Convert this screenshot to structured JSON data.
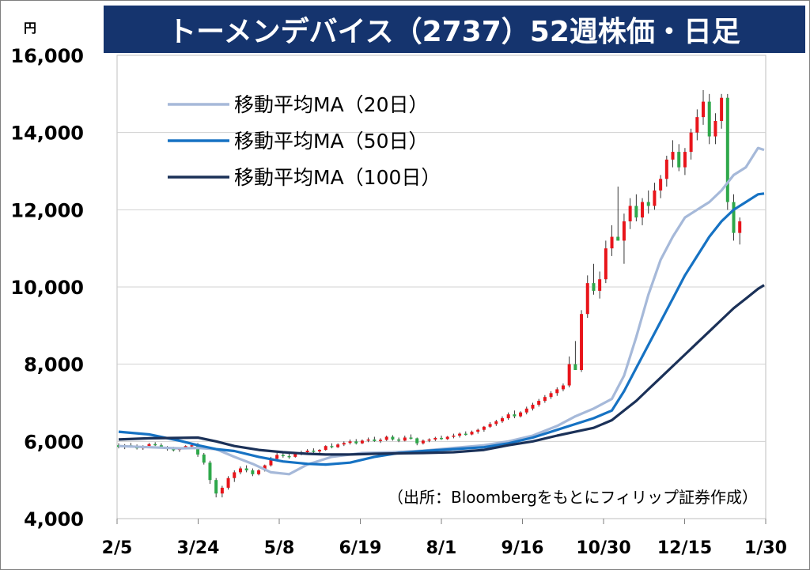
{
  "chart_data": {
    "type": "candlestick",
    "title": "トーメンデバイス（2737）52週株価・日足",
    "ylabel": "円",
    "ylim": [
      4000,
      16000
    ],
    "yticks": [
      "16,000",
      "14,000",
      "12,000",
      "10,000",
      "8,000",
      "6,000",
      "4,000"
    ],
    "ytick_values": [
      16000,
      14000,
      12000,
      10000,
      8000,
      6000,
      4000
    ],
    "xticks": [
      "2/5",
      "3/24",
      "5/8",
      "6/19",
      "8/1",
      "9/16",
      "10/30",
      "12/15",
      "1/30"
    ],
    "grid": true,
    "legend_position": "top-left",
    "source_note": "（出所：Bloombergをもとにフィリップ証券作成）",
    "colors": {
      "up": "#e8141a",
      "down": "#2ea84a",
      "ma20": "#a6b9d9",
      "ma50": "#1672c3",
      "ma100": "#1b3158",
      "title_bg": "#15346e"
    },
    "series": [
      {
        "name": "移動平均MA（20日）",
        "key": "ma20",
        "values": [
          [
            0,
            5880
          ],
          [
            5,
            5850
          ],
          [
            10,
            5820
          ],
          [
            13,
            5830
          ],
          [
            16,
            5800
          ],
          [
            19,
            5600
          ],
          [
            22,
            5420
          ],
          [
            25,
            5200
          ],
          [
            28,
            5150
          ],
          [
            31,
            5400
          ],
          [
            35,
            5600
          ],
          [
            40,
            5700
          ],
          [
            45,
            5720
          ],
          [
            50,
            5760
          ],
          [
            55,
            5830
          ],
          [
            60,
            5900
          ],
          [
            64,
            6000
          ],
          [
            68,
            6150
          ],
          [
            72,
            6400
          ],
          [
            75,
            6650
          ],
          [
            78,
            6850
          ],
          [
            81,
            7100
          ],
          [
            83,
            7700
          ],
          [
            85,
            8700
          ],
          [
            87,
            9800
          ],
          [
            89,
            10700
          ],
          [
            91,
            11300
          ],
          [
            93,
            11800
          ],
          [
            95,
            12000
          ],
          [
            97,
            12200
          ],
          [
            99,
            12500
          ],
          [
            101,
            12900
          ],
          [
            103,
            13100
          ],
          [
            105,
            13600
          ],
          [
            106,
            13550
          ]
        ]
      },
      {
        "name": "移動平均MA（50日）",
        "key": "ma50",
        "values": [
          [
            0,
            6250
          ],
          [
            5,
            6180
          ],
          [
            10,
            6020
          ],
          [
            13,
            5900
          ],
          [
            16,
            5800
          ],
          [
            19,
            5750
          ],
          [
            23,
            5600
          ],
          [
            27,
            5480
          ],
          [
            31,
            5420
          ],
          [
            34,
            5400
          ],
          [
            38,
            5450
          ],
          [
            42,
            5600
          ],
          [
            46,
            5700
          ],
          [
            50,
            5750
          ],
          [
            55,
            5800
          ],
          [
            60,
            5850
          ],
          [
            64,
            5950
          ],
          [
            68,
            6100
          ],
          [
            72,
            6300
          ],
          [
            75,
            6450
          ],
          [
            78,
            6600
          ],
          [
            81,
            6800
          ],
          [
            83,
            7300
          ],
          [
            85,
            7900
          ],
          [
            87,
            8500
          ],
          [
            89,
            9100
          ],
          [
            91,
            9700
          ],
          [
            93,
            10300
          ],
          [
            95,
            10800
          ],
          [
            97,
            11300
          ],
          [
            99,
            11700
          ],
          [
            101,
            12000
          ],
          [
            103,
            12200
          ],
          [
            105,
            12400
          ],
          [
            106,
            12420
          ]
        ]
      },
      {
        "name": "移動平均MA（100日）",
        "key": "ma100",
        "values": [
          [
            0,
            6050
          ],
          [
            5,
            6080
          ],
          [
            10,
            6090
          ],
          [
            13,
            6100
          ],
          [
            16,
            6000
          ],
          [
            19,
            5880
          ],
          [
            23,
            5780
          ],
          [
            27,
            5720
          ],
          [
            31,
            5680
          ],
          [
            34,
            5660
          ],
          [
            38,
            5660
          ],
          [
            42,
            5680
          ],
          [
            46,
            5690
          ],
          [
            50,
            5700
          ],
          [
            55,
            5720
          ],
          [
            60,
            5780
          ],
          [
            64,
            5900
          ],
          [
            68,
            6000
          ],
          [
            72,
            6150
          ],
          [
            75,
            6250
          ],
          [
            78,
            6350
          ],
          [
            81,
            6550
          ],
          [
            83,
            6800
          ],
          [
            85,
            7050
          ],
          [
            87,
            7350
          ],
          [
            89,
            7650
          ],
          [
            91,
            7950
          ],
          [
            93,
            8250
          ],
          [
            95,
            8550
          ],
          [
            97,
            8850
          ],
          [
            99,
            9150
          ],
          [
            101,
            9450
          ],
          [
            103,
            9700
          ],
          [
            105,
            9950
          ],
          [
            106,
            10050
          ]
        ]
      }
    ],
    "candles": [
      [
        0,
        5900,
        5950,
        5820,
        5860
      ],
      [
        1,
        5860,
        5930,
        5800,
        5900
      ],
      [
        2,
        5900,
        5960,
        5840,
        5870
      ],
      [
        3,
        5870,
        5920,
        5790,
        5820
      ],
      [
        4,
        5820,
        5900,
        5780,
        5880
      ],
      [
        5,
        5880,
        5960,
        5850,
        5930
      ],
      [
        6,
        5930,
        5980,
        5880,
        5900
      ],
      [
        7,
        5900,
        5950,
        5820,
        5840
      ],
      [
        8,
        5840,
        5880,
        5760,
        5800
      ],
      [
        9,
        5800,
        5860,
        5740,
        5780
      ],
      [
        10,
        5780,
        5850,
        5730,
        5820
      ],
      [
        11,
        5820,
        5900,
        5800,
        5880
      ],
      [
        12,
        5880,
        5940,
        5840,
        5900
      ],
      [
        13,
        5900,
        5960,
        5600,
        5660
      ],
      [
        14,
        5660,
        5700,
        5400,
        5450
      ],
      [
        15,
        5450,
        5500,
        4900,
        5000
      ],
      [
        16,
        5000,
        5050,
        4550,
        4650
      ],
      [
        17,
        4650,
        4850,
        4550,
        4800
      ],
      [
        18,
        4800,
        5100,
        4750,
        5050
      ],
      [
        19,
        5050,
        5250,
        4950,
        5200
      ],
      [
        20,
        5200,
        5350,
        5150,
        5300
      ],
      [
        21,
        5300,
        5380,
        5200,
        5250
      ],
      [
        22,
        5250,
        5300,
        5100,
        5150
      ],
      [
        23,
        5150,
        5280,
        5120,
        5250
      ],
      [
        24,
        5250,
        5400,
        5220,
        5380
      ],
      [
        25,
        5380,
        5600,
        5350,
        5550
      ],
      [
        26,
        5550,
        5700,
        5500,
        5650
      ],
      [
        27,
        5650,
        5720,
        5580,
        5620
      ],
      [
        28,
        5620,
        5680,
        5550,
        5600
      ],
      [
        29,
        5600,
        5700,
        5580,
        5680
      ],
      [
        30,
        5680,
        5760,
        5640,
        5720
      ],
      [
        31,
        5720,
        5800,
        5680,
        5760
      ],
      [
        32,
        5760,
        5820,
        5700,
        5740
      ],
      [
        33,
        5740,
        5800,
        5690,
        5780
      ],
      [
        34,
        5780,
        5900,
        5760,
        5880
      ],
      [
        35,
        5880,
        5950,
        5820,
        5850
      ],
      [
        36,
        5850,
        5950,
        5830,
        5920
      ],
      [
        37,
        5920,
        6000,
        5880,
        5960
      ],
      [
        38,
        5960,
        6050,
        5920,
        6000
      ],
      [
        39,
        6000,
        6060,
        5920,
        5950
      ],
      [
        40,
        5950,
        6050,
        5930,
        6020
      ],
      [
        41,
        6020,
        6100,
        5980,
        6050
      ],
      [
        42,
        6050,
        6120,
        5990,
        6010
      ],
      [
        43,
        6010,
        6080,
        5960,
        6040
      ],
      [
        44,
        6040,
        6150,
        6010,
        6120
      ],
      [
        45,
        6120,
        6160,
        6020,
        6050
      ],
      [
        46,
        6050,
        6100,
        5980,
        6020
      ],
      [
        47,
        6020,
        6150,
        6000,
        6100
      ],
      [
        48,
        6100,
        6180,
        6050,
        6080
      ],
      [
        49,
        6080,
        6100,
        5900,
        5950
      ],
      [
        50,
        5950,
        6050,
        5920,
        6020
      ],
      [
        51,
        6020,
        6080,
        5980,
        6050
      ],
      [
        52,
        6050,
        6120,
        6010,
        6090
      ],
      [
        53,
        6090,
        6150,
        6040,
        6060
      ],
      [
        54,
        6060,
        6140,
        6040,
        6120
      ],
      [
        55,
        6120,
        6200,
        6080,
        6150
      ],
      [
        56,
        6150,
        6230,
        6100,
        6200
      ],
      [
        57,
        6200,
        6260,
        6150,
        6180
      ],
      [
        58,
        6180,
        6280,
        6160,
        6250
      ],
      [
        59,
        6250,
        6330,
        6200,
        6300
      ],
      [
        60,
        6300,
        6400,
        6250,
        6380
      ],
      [
        61,
        6380,
        6500,
        6350,
        6450
      ],
      [
        62,
        6450,
        6560,
        6400,
        6520
      ],
      [
        63,
        6520,
        6650,
        6480,
        6600
      ],
      [
        64,
        6600,
        6750,
        6560,
        6700
      ],
      [
        65,
        6700,
        6800,
        6600,
        6650
      ],
      [
        66,
        6650,
        6780,
        6620,
        6750
      ],
      [
        67,
        6750,
        6900,
        6700,
        6850
      ],
      [
        68,
        6850,
        7000,
        6800,
        6950
      ],
      [
        69,
        6950,
        7100,
        6900,
        7050
      ],
      [
        70,
        7050,
        7200,
        7000,
        7150
      ],
      [
        71,
        7150,
        7300,
        7100,
        7250
      ],
      [
        72,
        7250,
        7400,
        7180,
        7350
      ],
      [
        73,
        7350,
        7500,
        7300,
        7450
      ],
      [
        74,
        7450,
        8200,
        7400,
        8000
      ],
      [
        75,
        8000,
        8600,
        7900,
        7850
      ],
      [
        76,
        7850,
        9400,
        7800,
        9300
      ],
      [
        77,
        9300,
        10300,
        9200,
        10100
      ],
      [
        78,
        10100,
        10600,
        9800,
        9900
      ],
      [
        79,
        9900,
        10400,
        9700,
        10200
      ],
      [
        80,
        10200,
        11200,
        10100,
        11000
      ],
      [
        81,
        11000,
        11600,
        10800,
        11300
      ],
      [
        82,
        11300,
        12600,
        11200,
        11200
      ],
      [
        83,
        11200,
        11900,
        10600,
        11700
      ],
      [
        84,
        11700,
        12300,
        11500,
        12100
      ],
      [
        85,
        12100,
        12400,
        11700,
        11800
      ],
      [
        86,
        11800,
        12300,
        11600,
        12200
      ],
      [
        87,
        12200,
        12500,
        11900,
        12100
      ],
      [
        88,
        12100,
        12700,
        12000,
        12500
      ],
      [
        89,
        12500,
        12900,
        12300,
        12800
      ],
      [
        90,
        12800,
        13400,
        12600,
        13300
      ],
      [
        91,
        13300,
        13800,
        13100,
        13500
      ],
      [
        92,
        13500,
        13700,
        13000,
        13100
      ],
      [
        93,
        13100,
        13600,
        12900,
        13500
      ],
      [
        94,
        13500,
        14100,
        13300,
        14000
      ],
      [
        95,
        14000,
        14600,
        13800,
        14400
      ],
      [
        96,
        14400,
        15100,
        14200,
        14800
      ],
      [
        97,
        14800,
        15000,
        13700,
        13900
      ],
      [
        98,
        13900,
        14500,
        13700,
        14300
      ],
      [
        99,
        14300,
        15000,
        14100,
        14900
      ],
      [
        100,
        14900,
        15000,
        12000,
        12200
      ],
      [
        101,
        12200,
        12400,
        11200,
        11400
      ],
      [
        102,
        11400,
        11800,
        11100,
        11700
      ]
    ]
  }
}
